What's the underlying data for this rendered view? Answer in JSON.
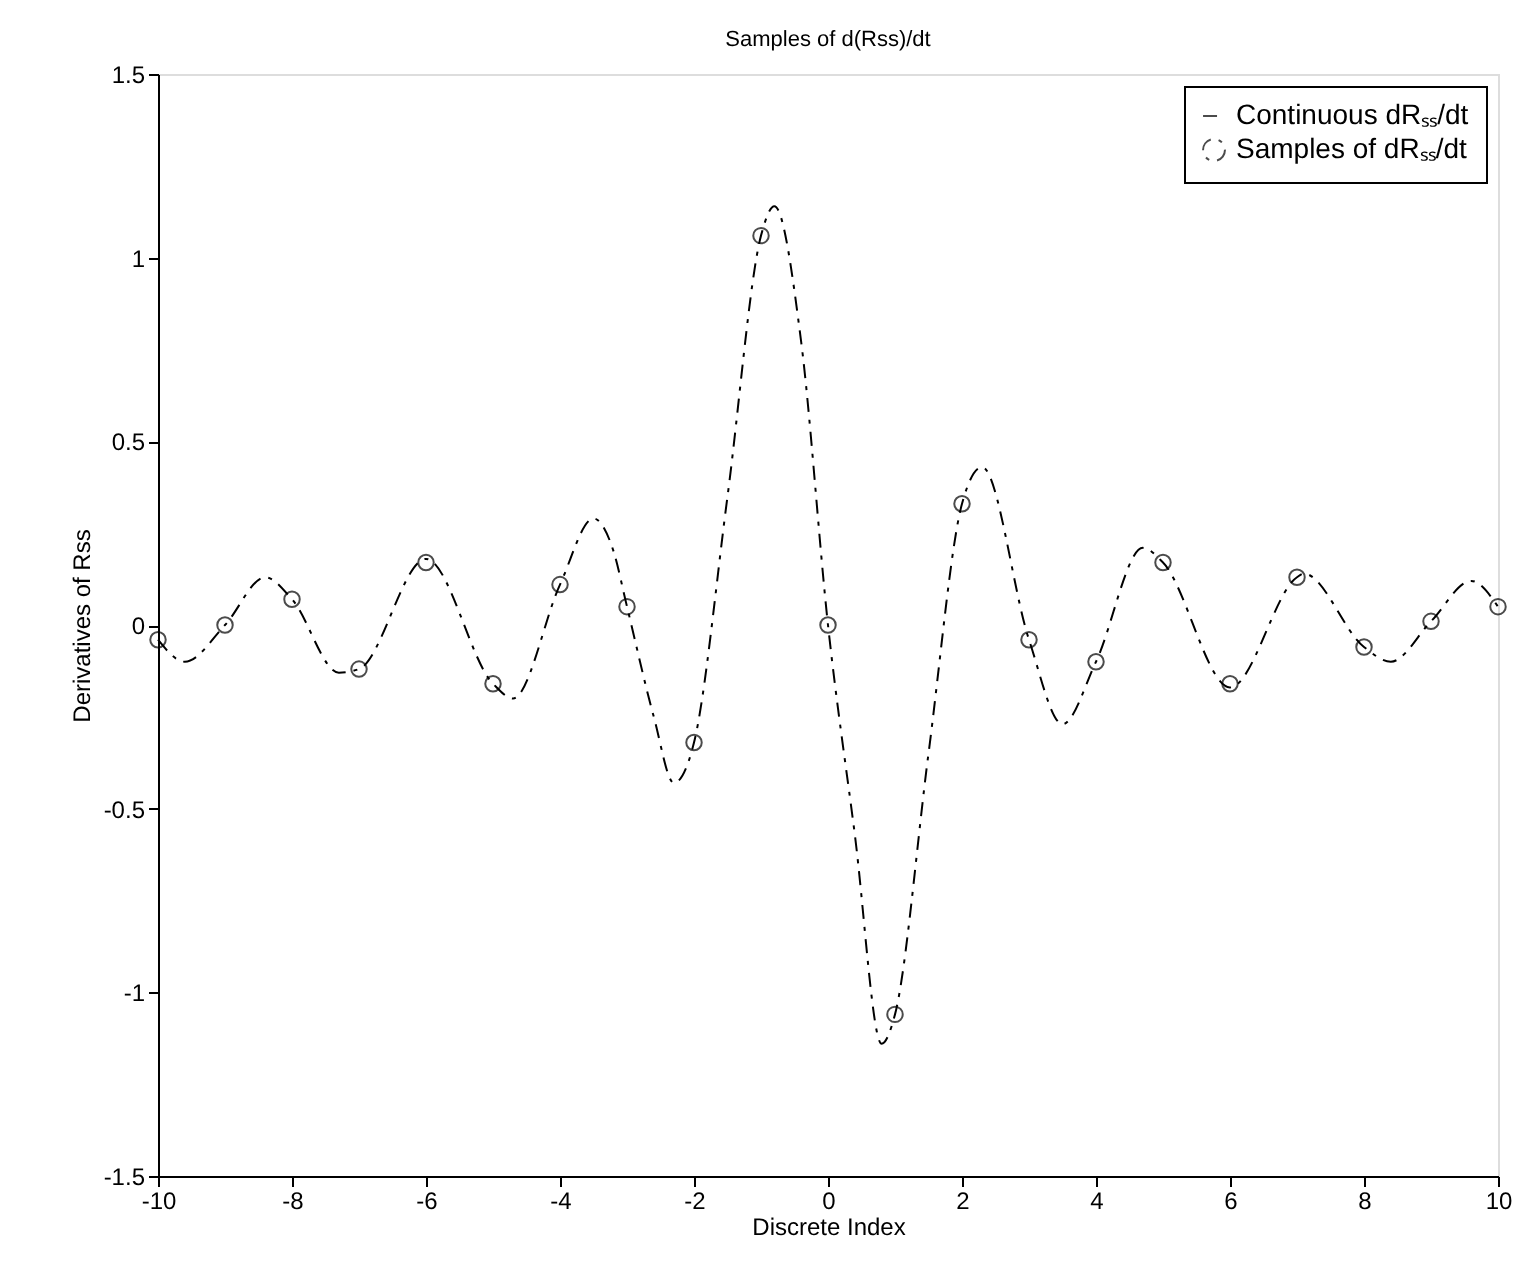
{
  "chart_data": {
    "type": "line",
    "title": "Samples of d(Rss)/dt",
    "xlabel": "Discrete Index",
    "ylabel": "Derivatives of Rss",
    "xlim": [
      -10,
      10
    ],
    "xticks": [
      -10,
      -8,
      -6,
      -4,
      -2,
      0,
      2,
      4,
      6,
      8,
      10
    ],
    "ylim": [
      -1.5,
      1.5
    ],
    "yticks": [
      -1.5,
      -1,
      -0.5,
      0,
      0.5,
      1,
      1.5
    ],
    "grid": false,
    "legend": "top right",
    "series": [
      {
        "name": "Continuous dRₛₛ/dt",
        "color": "#000000",
        "line_style": "dashed",
        "marker": "none",
        "x": [
          -10,
          -9.6,
          -9,
          -8.4,
          -8,
          -7.3,
          -7,
          -6,
          -5,
          -4.7,
          -4,
          -3.5,
          -3.2,
          -3,
          -2.6,
          -2.3,
          -2,
          -1.5,
          -1,
          -0.8,
          -0.4,
          0,
          0.4,
          0.8,
          1,
          1.5,
          2,
          2.3,
          3,
          3.5,
          4,
          4.7,
          5,
          6,
          7,
          7.1,
          8,
          8.4,
          9,
          9.6,
          10
        ],
        "values": [
          -0.04,
          -0.1,
          0.0,
          0.13,
          0.07,
          -0.13,
          -0.12,
          0.18,
          -0.16,
          -0.2,
          0.11,
          0.29,
          0.2,
          0.05,
          -0.25,
          -0.43,
          -0.32,
          0.35,
          1.06,
          1.14,
          0.77,
          0.0,
          -0.57,
          -1.14,
          -1.06,
          -0.35,
          0.33,
          0.43,
          -0.04,
          -0.27,
          -0.1,
          0.21,
          0.17,
          -0.17,
          0.13,
          0.14,
          -0.06,
          -0.1,
          0.01,
          0.12,
          0.05
        ]
      },
      {
        "name": "Samples of dRₛₛ/dt",
        "type": "scatter",
        "color": "#000000",
        "marker": "circle",
        "x": [
          -10,
          -9,
          -8,
          -7,
          -6,
          -5,
          -4,
          -3,
          -2,
          -1,
          0,
          1,
          2,
          3,
          4,
          5,
          6,
          7,
          8,
          9,
          10
        ],
        "values": [
          -0.04,
          0.0,
          0.07,
          -0.12,
          0.17,
          -0.16,
          0.11,
          0.05,
          -0.32,
          1.06,
          0.0,
          -1.06,
          0.33,
          -0.04,
          -0.1,
          0.17,
          -0.16,
          0.13,
          -0.06,
          0.01,
          0.05
        ]
      }
    ]
  }
}
